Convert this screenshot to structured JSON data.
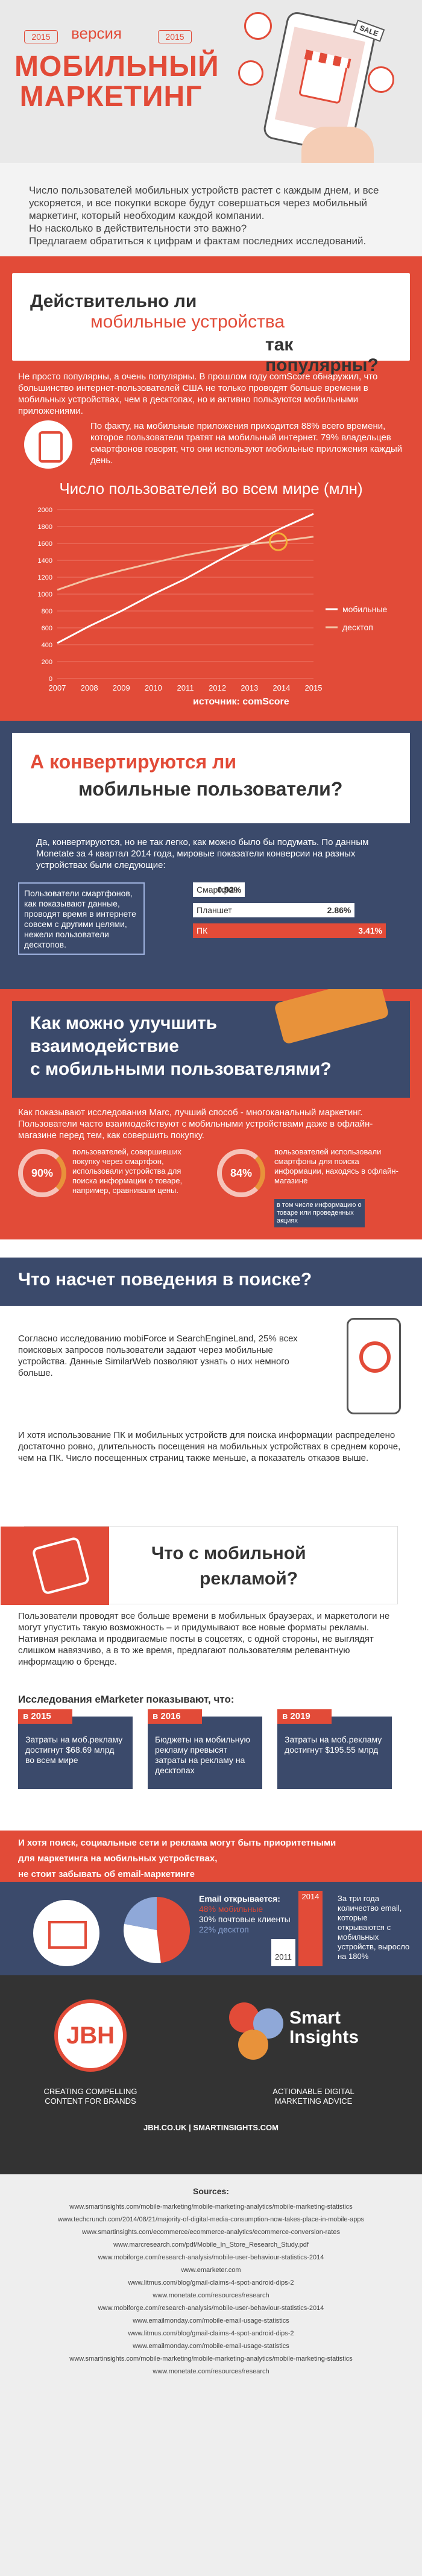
{
  "header": {
    "version": "версия",
    "year_left": "2015",
    "year_right": "2015",
    "title_line1": "МОБИЛЬНЫЙ",
    "title_line2": "МАРКЕТИНГ",
    "sale_badge": "SALE",
    "brand_color": "#e24b38",
    "navy_color": "#3b4a6b"
  },
  "intro": {
    "text": "Число пользователей мобильных устройств растет с каждым днем, и все ускоряется, и все покупки вскоре будут совершаться через мобильный маркетинг, который необходим каждой компании.",
    "question": "Но насколько в действительности это важно?",
    "prompt": "Предлагаем обратиться к цифрам и фактам последних исследований."
  },
  "popular": {
    "title_1": "Действительно ли",
    "title_2": "мобильные устройства",
    "title_3": "так популярны?",
    "p1": "Не просто популярны, а очень популярны. В прошлом году comScore обнаружил, что большинство интернет-пользователей США не только проводят больше времени в мобильных устройствах, чем в десктопах, но и активно пользуются мобильными приложениями.",
    "p2": "По факту, на мобильные приложения приходится 88% всего времени, которое пользователи тратят на мобильный интернет. 79% владельцев смартфонов говорят, что они используют мобильные приложения каждый день.",
    "chart_title": "Число пользователей во всем мире (млн)",
    "source": "источник: comScore"
  },
  "chart_data": {
    "type": "line",
    "title": "Число пользователей во всем мире (млн)",
    "x": [
      "2007",
      "2008",
      "2009",
      "2010",
      "2011",
      "2012",
      "2013",
      "2014",
      "2015"
    ],
    "ylim": [
      0,
      2000
    ],
    "yticks": [
      "0",
      "200",
      "400",
      "600",
      "800",
      "1000",
      "1200",
      "1400",
      "1600",
      "1800",
      "2000"
    ],
    "series": [
      {
        "name": "мобильные",
        "color": "#ffffff",
        "values": [
          420,
          620,
          800,
          1000,
          1180,
          1390,
          1590,
          1780,
          1950
        ]
      },
      {
        "name": "десктоп",
        "color": "#f4c4a5",
        "values": [
          1050,
          1180,
          1280,
          1370,
          1460,
          1530,
          1590,
          1630,
          1680
        ]
      }
    ],
    "grid": true,
    "legend": "right"
  },
  "convert": {
    "title_1": "А конвертируются ли",
    "title_2": "мобильные пользователи?",
    "p1": "Да, конвертируются, но не так легко, как можно было бы подумать. По данным Monetate за 4 квартал 2014 года, мировые показатели конверсии на разных устройствах были следующие:",
    "note": "Пользователи смартфонов, как показывают данные, проводят время в интернете совсем с другими целями, нежели пользователи десктопов.",
    "bars": [
      {
        "label": "Смартфон",
        "value": "0.92%",
        "pct": 0.92
      },
      {
        "label": "Планшет",
        "value": "2.86%",
        "pct": 2.86
      },
      {
        "label": "ПК",
        "value": "3.41%",
        "pct": 3.41
      }
    ]
  },
  "engage": {
    "title_1": "Как можно улучшить",
    "title_2": "взаимодействие",
    "title_3": "с мобильными пользователями?",
    "p1": "Как показывают исследования Marc, лучший способ - многоканальный маркетинг. Пользователи часто взаимодействуют с мобильными устройствами даже в офлайн-магазине перед тем, как совершить покупку.",
    "stat1": "90%",
    "stat1_text": "пользователей, совершивших покупку через смартфон, использовали устройства для поиска информации о товаре, например, сравнивали цены.",
    "stat2": "84%",
    "stat2_text": "пользователей использовали смартфоны для поиска информации, находясь в офлайн-магазине",
    "tag": "в том числе информацию о товаре или проведенных акциях"
  },
  "search": {
    "title": "Что насчет поведения в поиске?",
    "p1": "Согласно исследованию mobiForce и SearchEngineLand, 25% всех поисковых запросов пользователи задают через мобильные устройства. Данные SimilarWeb позволяют узнать о них немного больше.",
    "p2": "И хотя использование ПК и мобильных устройств для поиска информации распределено достаточно ровно, длительность посещения на мобильных устройствах в среднем короче, чем на ПК. Число посещенных страниц также меньше, а показатель отказов выше."
  },
  "ads": {
    "title_1": "Что с мобильной",
    "title_2": "рекламой?",
    "p1": "Пользователи проводят все больше времени в мобильных браузерах, и маркетологи не могут упустить такую возможность – и придумывают все новые форматы рекламы. Нативная реклама и продвигаемые посты в соцсетях, с одной стороны, не выглядят слишком навязчиво, а в то же время, предлагают пользователям релевантную информацию о бренде.",
    "heading": "Исследования eMarketer показывают, что:",
    "cards": [
      {
        "year": "в 2015",
        "text": "Затраты на моб.рекламу достигнут $68.69 млрд во всем мире"
      },
      {
        "year": "в 2016",
        "text": "Бюджеты на мобильную рекламу превысят затраты на рекламу на десктопах"
      },
      {
        "year": "в 2019",
        "text": "Затраты на моб.рекламу достигнут $195.55 млрд"
      }
    ]
  },
  "email": {
    "banner_1": "И хотя поиск, социальные сети и реклама могут быть приоритетными",
    "banner_2": "для маркетинга на мобильных устройствах,",
    "banner_3": "не стоит забывать об email-маркетинге",
    "legend_head": "Email открывается:",
    "legend": [
      {
        "label": "48% мобильные",
        "pct": 48,
        "color": "#e24b38"
      },
      {
        "label": "30% почтовые клиенты",
        "pct": 30,
        "color": "#ffffff"
      },
      {
        "label": "22% десктоп",
        "pct": 22,
        "color": "#8fa8d8"
      }
    ],
    "bar_2011": "2011",
    "bar_2014": "2014",
    "growth_text": "За три года количество email, которые открываются с мобильных устройств, выросло на 180%"
  },
  "footer": {
    "jbh": "JBH",
    "smart_1": "Smart",
    "smart_2": "Insights",
    "left_caption_1": "CREATING COMPELLING",
    "left_caption_2": "CONTENT FOR BRANDS",
    "right_caption_1": "ACTIONABLE DIGITAL",
    "right_caption_2": "MARKETING ADVICE",
    "urls": "JBH.CO.UK  |  SMARTINSIGHTS.COM"
  },
  "sources": {
    "heading": "Sources:",
    "list": [
      "www.smartinsights.com/mobile-marketing/mobile-marketing-analytics/mobile-marketing-statistics",
      "www.techcrunch.com/2014/08/21/majority-of-digital-media-consumption-now-takes-place-in-mobile-apps",
      "www.smartinsights.com/ecommerce/ecommerce-analytics/ecommerce-conversion-rates",
      "www.marcresearch.com/pdf/Mobile_In_Store_Research_Study.pdf",
      "www.mobiforge.com/research-analysis/mobile-user-behaviour-statistics-2014",
      "www.emarketer.com",
      "www.litmus.com/blog/gmail-claims-4-spot-android-dips-2",
      "www.monetate.com/resources/research",
      "www.mobiforge.com/research-analysis/mobile-user-behaviour-statistics-2014",
      "www.emailmonday.com/mobile-email-usage-statistics",
      "www.litmus.com/blog/gmail-claims-4-spot-android-dips-2",
      "www.emailmonday.com/mobile-email-usage-statistics",
      "www.smartinsights.com/mobile-marketing/mobile-marketing-analytics/mobile-marketing-statistics",
      "www.monetate.com/resources/research"
    ]
  }
}
